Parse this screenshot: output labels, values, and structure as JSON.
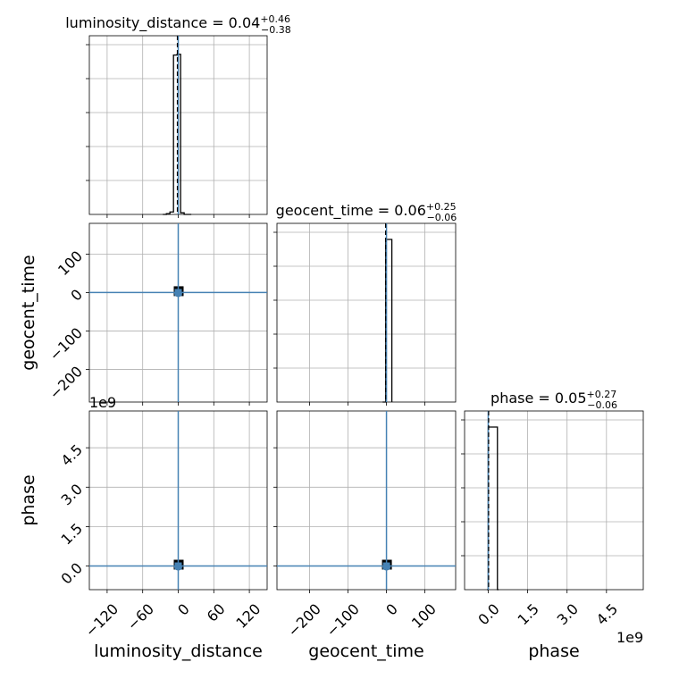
{
  "chart_data": {
    "type": "corner",
    "parameters": [
      "luminosity_distance",
      "geocent_time",
      "phase"
    ],
    "colors": {
      "truth": "#4682b4",
      "histogram": "#000000",
      "grid": "#b0b0b0"
    },
    "grid": true,
    "titles": [
      {
        "param": "luminosity_distance",
        "prefix": "luminosity_distance = 0.04",
        "plus": "+0.46",
        "minus": "−0.38"
      },
      {
        "param": "geocent_time",
        "prefix": "geocent_time = 0.06",
        "plus": "+0.25",
        "minus": "−0.06"
      },
      {
        "param": "phase",
        "prefix": "phase = 0.05",
        "plus": "+0.27",
        "minus": "−0.06"
      }
    ],
    "axes": {
      "luminosity_distance": {
        "range": [
          -150,
          150
        ],
        "ticks": [
          -120,
          -60,
          0,
          60,
          120
        ],
        "tick_labels": [
          "−120",
          "−60",
          "0",
          "60",
          "120"
        ]
      },
      "geocent_time": {
        "range": [
          -285,
          180
        ],
        "ticks": [
          -200,
          -100,
          0,
          100
        ],
        "tick_labels": [
          "−200",
          "−100",
          "0",
          "100"
        ]
      },
      "phase": {
        "range": [
          -0.9,
          5.9
        ],
        "ticks": [
          0.0,
          1.5,
          3.0,
          4.5
        ],
        "tick_labels": [
          "0.0",
          "1.5",
          "3.0",
          "4.5"
        ],
        "offset_text": "1e9"
      }
    },
    "axis_labels": {
      "x": [
        "luminosity_distance",
        "geocent_time",
        "phase"
      ],
      "y": [
        "geocent_time",
        "phase"
      ]
    },
    "truths": {
      "luminosity_distance": 0,
      "geocent_time": 0,
      "phase": 0
    },
    "medians": {
      "luminosity_distance": 0.04,
      "geocent_time": 0.06,
      "phase": 0.05
    },
    "histograms": {
      "luminosity_distance": {
        "edges": [
          -26,
          -20,
          -14,
          -8,
          -2,
          4,
          10,
          16,
          22
        ],
        "heights": [
          0.0,
          0.005,
          0.015,
          0.98,
          0.985,
          0.01,
          0.0,
          0.0
        ]
      },
      "geocent_time": {
        "edges": [
          -10,
          -2,
          6,
          14
        ],
        "heights": [
          0.0,
          1.0,
          1.0
        ]
      },
      "phase": {
        "edges": [
          -0.05,
          0.0,
          0.35,
          0.4
        ],
        "heights": [
          0.0,
          1.0,
          0.0
        ]
      }
    },
    "density_blobs": [
      {
        "x": "luminosity_distance",
        "y": "geocent_time",
        "center": [
          0,
          0
        ]
      },
      {
        "x": "luminosity_distance",
        "y": "phase",
        "center": [
          0,
          0
        ]
      },
      {
        "x": "geocent_time",
        "y": "phase",
        "center": [
          0,
          0
        ]
      }
    ]
  }
}
